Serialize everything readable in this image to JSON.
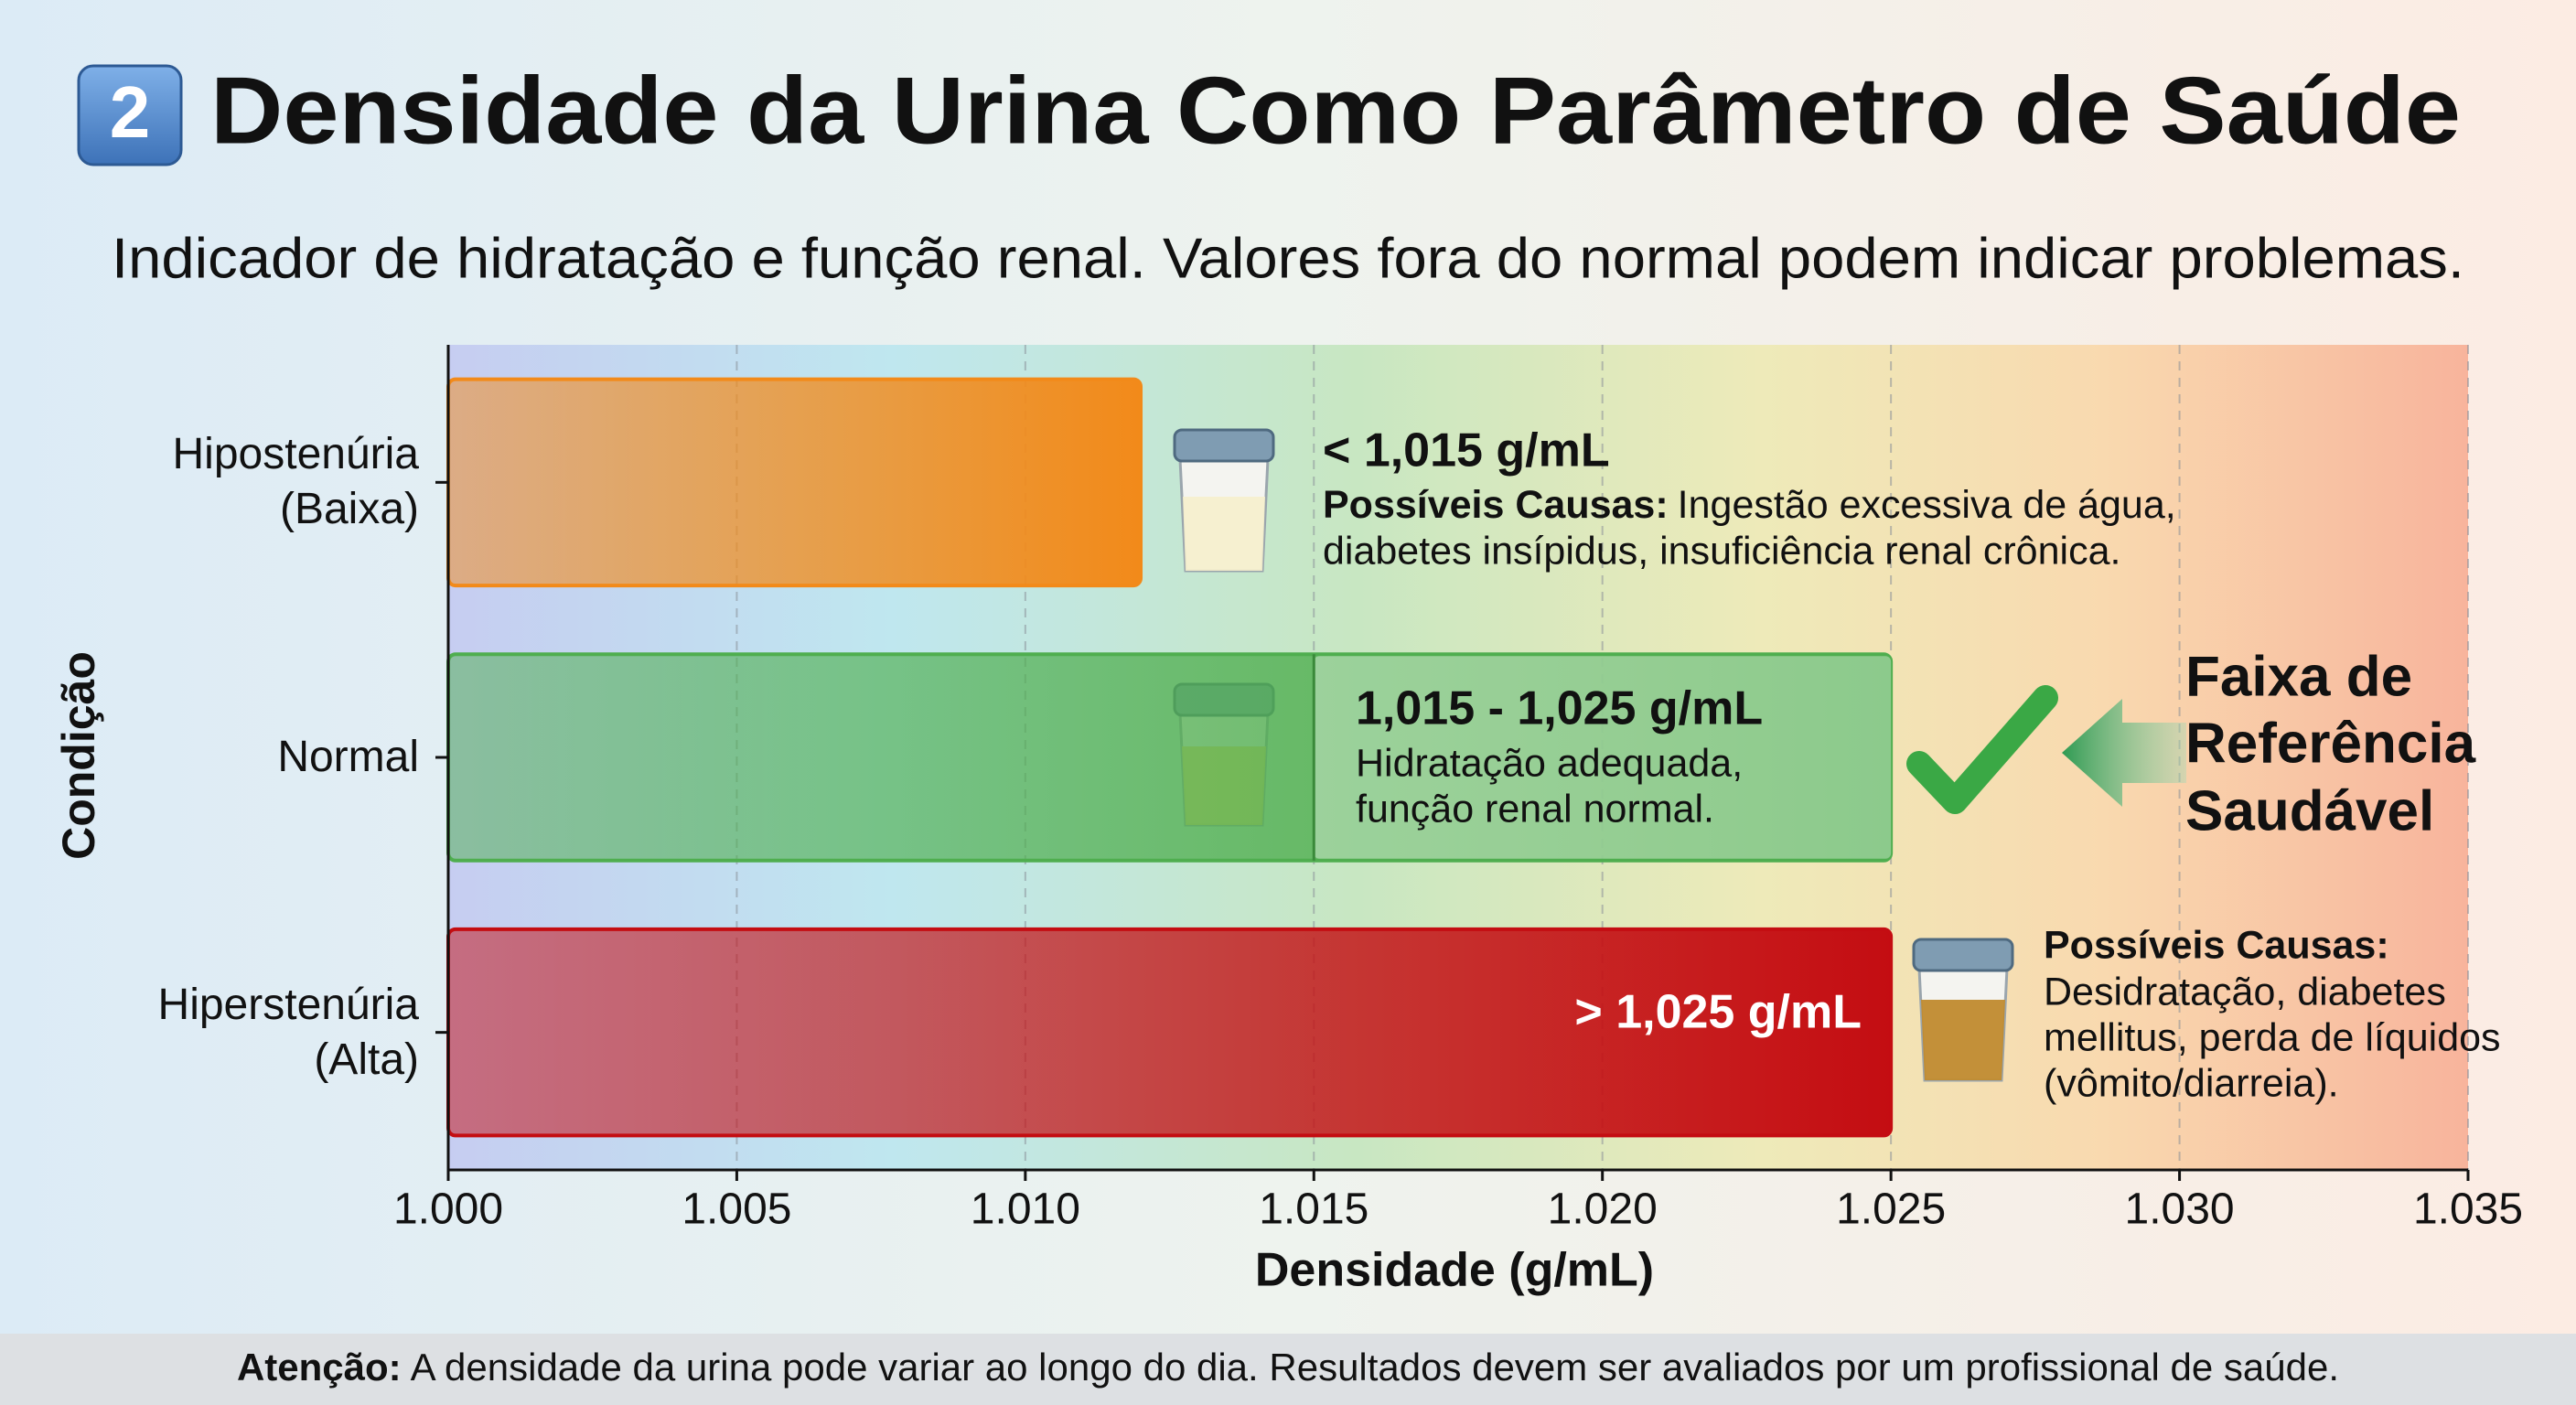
{
  "chart_data": {
    "type": "bar",
    "badge": "2",
    "title": "Densidade da Urina Como Parâmetro de Saúde",
    "subtitle": "Indicador de hidratação e função renal. Valores fora do normal podem indicar problemas.",
    "categories": [
      "Hipostenúria (Baixa)",
      "Normal",
      "Hiperstenúria (Alta)"
    ],
    "values": [
      1.012,
      1.025,
      1.025
    ],
    "colors": [
      "#f28a1a",
      "#4fae4f",
      "#c40d12"
    ],
    "reference_range": [
      1.015,
      1.025
    ],
    "xlabel": "Densidade (g/mL)",
    "ylabel": "Condição",
    "xlim": [
      1,
      1.035
    ],
    "xticks": [
      {
        "value": 1,
        "label": "1.000"
      },
      1.005,
      {
        "value": 1.01,
        "label": "1.010"
      },
      1.015,
      {
        "value": 1.02,
        "label": "1.020"
      },
      1.025,
      {
        "value": 1.03,
        "label": "1.030"
      },
      1.035
    ],
    "grid": true,
    "annotations": [
      {
        "range": "< 1,015 g/mL",
        "causes_label": "Possíveis Causas:",
        "lines": [
          "Ingestão excessiva de água,",
          "diabetes insípidus, insuficiência renal crônica."
        ]
      },
      {
        "range": "1,015 - 1,025 g/mL",
        "lines": [
          "Hidratação adequada,",
          "função renal normal."
        ]
      },
      {
        "range": "> 1,025 g/mL",
        "causes_label": "Possíveis Causas:",
        "lines": [
          "Desidratação, diabetes",
          "mellitus, perda de líquidos",
          "(vômito/diarreia)."
        ]
      }
    ],
    "callout": [
      "Faixa de",
      "Referência",
      "Saudável"
    ],
    "footer": {
      "label": "Atenção:",
      "text": "A densidade da urina pode variar ao longo do dia. Resultados devem ser avaliados por um profissional de saúde."
    }
  }
}
